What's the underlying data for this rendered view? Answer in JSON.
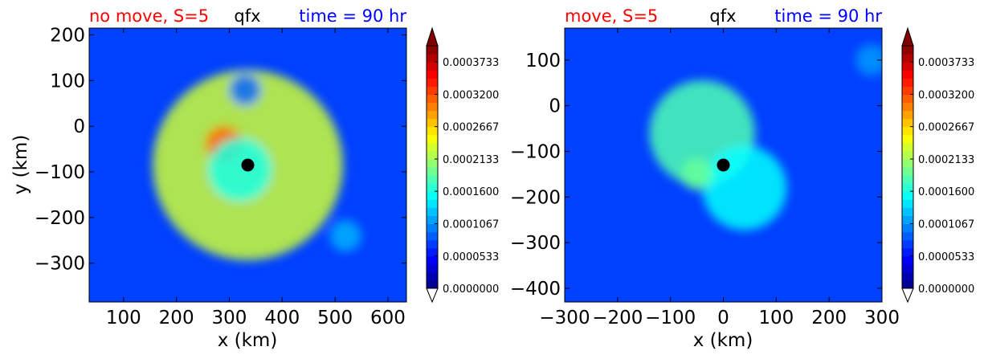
{
  "colors": {
    "title_left": "#ff0000",
    "title_center": "#000000",
    "title_right": "#0000ff",
    "colormap": "jet"
  },
  "chart_data": [
    {
      "type": "heatmap",
      "subtype": "filled-contour",
      "title_left": "no move, S=5",
      "title_center": "qfx",
      "title_right": "time = 90 hr",
      "xlabel": "x (km)",
      "ylabel": "y (km)",
      "xlim": [
        35,
        635
      ],
      "ylim": [
        -385,
        215
      ],
      "xticks": [
        100,
        200,
        300,
        400,
        500,
        600
      ],
      "xtick_labels": [
        "100",
        "200",
        "300",
        "400",
        "500",
        "600"
      ],
      "yticks": [
        200,
        100,
        0,
        -100,
        -200,
        -300
      ],
      "ytick_labels": [
        "200",
        "100",
        "0",
        "−100",
        "−200",
        "−300"
      ],
      "center_marker": {
        "x": 335,
        "y": -85
      },
      "features": [
        {
          "x": 335,
          "y": -85,
          "value": 0.00023,
          "r": 180
        },
        {
          "x": 290,
          "y": -40,
          "value": 0.00031,
          "r": 35
        },
        {
          "x": 320,
          "y": -95,
          "value": 0.00016,
          "r": 60
        },
        {
          "x": 520,
          "y": -240,
          "value": 0.00012,
          "r": 30
        },
        {
          "x": 330,
          "y": 80,
          "value": 9e-05,
          "r": 30
        }
      ],
      "colorbar": {
        "min": 0.0,
        "max": 0.0004,
        "levels": 30,
        "extend": "both",
        "ticks": [
          0.0,
          5.33e-05,
          0.0001067,
          0.00016,
          0.0002133,
          0.0002667,
          0.00032,
          0.0003733
        ],
        "tick_labels": [
          "0.0000000",
          "0.0000533",
          "0.0001067",
          "0.0001600",
          "0.0002133",
          "0.0002667",
          "0.0003200",
          "0.0003733"
        ]
      }
    },
    {
      "type": "heatmap",
      "subtype": "filled-contour",
      "title_left": "move, S=5",
      "title_center": "qfx",
      "title_right": "time = 90 hr",
      "xlabel": "x (km)",
      "ylabel": "",
      "xlim": [
        -300,
        300
      ],
      "ylim": [
        -430,
        170
      ],
      "xticks": [
        -300,
        -200,
        -100,
        0,
        100,
        200,
        300
      ],
      "xtick_labels": [
        "−300",
        "−200",
        "−100",
        "0",
        "100",
        "200",
        "300"
      ],
      "yticks": [
        100,
        0,
        -100,
        -200,
        -300,
        -400
      ],
      "ytick_labels": [
        "100",
        "0",
        "−100",
        "−200",
        "−300",
        "−400"
      ],
      "center_marker": {
        "x": 0,
        "y": -130
      },
      "features": [
        {
          "x": -40,
          "y": -60,
          "value": 0.00018,
          "r": 100
        },
        {
          "x": 40,
          "y": -180,
          "value": 0.00015,
          "r": 80
        },
        {
          "x": -50,
          "y": -150,
          "value": 0.00019,
          "r": 30
        },
        {
          "x": 280,
          "y": 100,
          "value": 0.00011,
          "r": 30
        }
      ],
      "colorbar": {
        "min": 0.0,
        "max": 0.0004,
        "levels": 30,
        "extend": "both",
        "ticks": [
          0.0,
          5.33e-05,
          0.0001067,
          0.00016,
          0.0002133,
          0.0002667,
          0.00032,
          0.0003733
        ],
        "tick_labels": [
          "0.0000000",
          "0.0000533",
          "0.0001067",
          "0.0001600",
          "0.0002133",
          "0.0002667",
          "0.0003200",
          "0.0003733"
        ]
      }
    }
  ]
}
